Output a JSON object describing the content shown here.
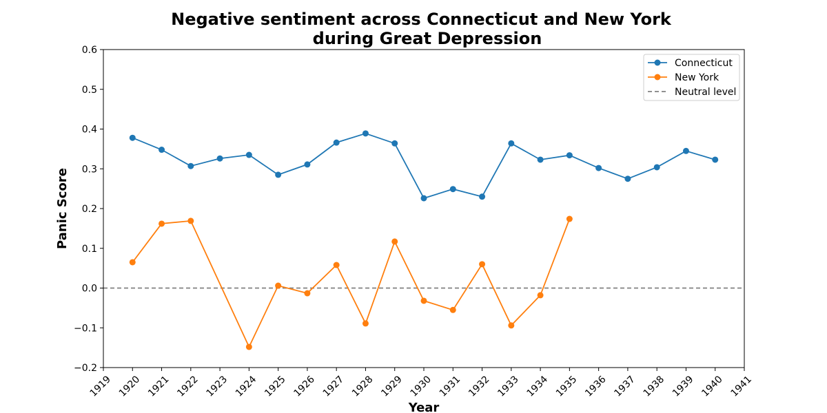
{
  "chart_data": {
    "type": "line",
    "title_line1": "Negative sentiment across Connecticut and New York",
    "title_line2": "during Great Depression",
    "xlabel": "Year",
    "ylabel": "Panic Score",
    "xlim": [
      1919,
      1941
    ],
    "ylim": [
      -0.2,
      0.6
    ],
    "xticks": [
      1919,
      1920,
      1921,
      1922,
      1923,
      1924,
      1925,
      1926,
      1927,
      1928,
      1929,
      1930,
      1931,
      1932,
      1933,
      1934,
      1935,
      1936,
      1937,
      1938,
      1939,
      1940,
      1941
    ],
    "yticks": [
      -0.2,
      -0.1,
      0.0,
      0.1,
      0.2,
      0.3,
      0.4,
      0.5,
      0.6
    ],
    "ytick_labels": [
      "−0.2",
      "−0.1",
      "0.0",
      "0.1",
      "0.2",
      "0.3",
      "0.4",
      "0.5",
      "0.6"
    ],
    "grid": false,
    "legend_position": "top-right",
    "series": [
      {
        "name": "Connecticut",
        "color": "#1f77b4",
        "x": [
          1920,
          1921,
          1922,
          1923,
          1924,
          1925,
          1926,
          1927,
          1928,
          1929,
          1930,
          1931,
          1932,
          1933,
          1934,
          1935,
          1936,
          1937,
          1938,
          1939,
          1940
        ],
        "values": [
          0.378,
          0.348,
          0.307,
          0.326,
          0.335,
          0.285,
          0.311,
          0.366,
          0.389,
          0.364,
          0.226,
          0.249,
          0.23,
          0.364,
          0.323,
          0.334,
          0.302,
          0.275,
          0.304,
          0.345,
          0.323
        ]
      },
      {
        "name": "New York",
        "color": "#ff7f0e",
        "x": [
          1920,
          1921,
          1922,
          1924,
          1925,
          1926,
          1927,
          1928,
          1929,
          1930,
          1931,
          1932,
          1933,
          1934,
          1935
        ],
        "values": [
          0.065,
          0.162,
          0.169,
          -0.148,
          0.006,
          -0.013,
          0.058,
          -0.089,
          0.117,
          -0.032,
          -0.055,
          0.06,
          -0.094,
          -0.018,
          0.174
        ]
      }
    ],
    "reference_line": {
      "name": "Neutral level",
      "value": 0.0,
      "color": "#808080",
      "style": "dashed"
    }
  }
}
